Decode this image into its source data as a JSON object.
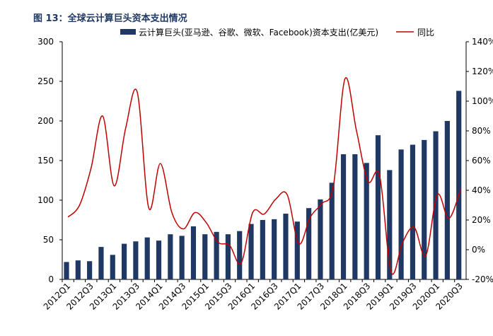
{
  "chart_data": {
    "type": "bar",
    "title": "图 13：全球云计算巨头资本支出情况",
    "categories": [
      "2012Q1",
      null,
      "2012Q3",
      null,
      "2013Q1",
      null,
      "2013Q3",
      null,
      "2014Q1",
      null,
      "2014Q3",
      null,
      "2015Q1",
      null,
      "2015Q3",
      null,
      "2016Q1",
      null,
      "2016Q3",
      null,
      "2017Q1",
      null,
      "2017Q3",
      null,
      "2018Q1",
      null,
      "2018Q3",
      null,
      "2019Q1",
      null,
      "2019Q3",
      null,
      "2020Q1",
      null,
      "2020Q3"
    ],
    "series": [
      {
        "name": "云计算巨头(亚马逊、谷歌、微软、Facebook)资本支出(亿美元)",
        "color": "#203864",
        "type": "bar",
        "values": [
          22,
          24,
          23,
          41,
          31,
          45,
          48,
          53,
          49,
          57,
          55,
          67,
          57,
          60,
          57,
          61,
          70,
          75,
          76,
          83,
          73,
          90,
          101,
          122,
          158,
          158,
          147,
          182,
          138,
          164,
          170,
          176,
          187,
          200,
          238
        ]
      },
      {
        "name": "同比",
        "color": "#c00000",
        "type": "line",
        "axis": "y2",
        "values": [
          22,
          30,
          55,
          90,
          43,
          82,
          106,
          28,
          58,
          25,
          14,
          25,
          18,
          5,
          3,
          -9,
          25,
          24,
          34,
          37,
          4,
          22,
          31,
          43,
          115,
          80,
          46,
          50,
          -15,
          5,
          15,
          -4,
          37,
          21,
          40
        ]
      }
    ],
    "ylim": [
      0,
      300
    ],
    "yticks": [
      0,
      50,
      100,
      150,
      200,
      250,
      300
    ],
    "y2lim": [
      -20,
      140
    ],
    "y2ticks": [
      {
        "value": -20,
        "label": "-20%"
      },
      {
        "value": 0,
        "label": "0%"
      },
      {
        "value": 20,
        "label": "20%"
      },
      {
        "value": 40,
        "label": "40%"
      },
      {
        "value": 60,
        "label": "60%"
      },
      {
        "value": 80,
        "label": "80%"
      },
      {
        "value": 100,
        "label": "100%"
      },
      {
        "value": 120,
        "label": "120%"
      },
      {
        "value": 140,
        "label": "140%"
      }
    ],
    "legend": "top",
    "grid": false
  }
}
